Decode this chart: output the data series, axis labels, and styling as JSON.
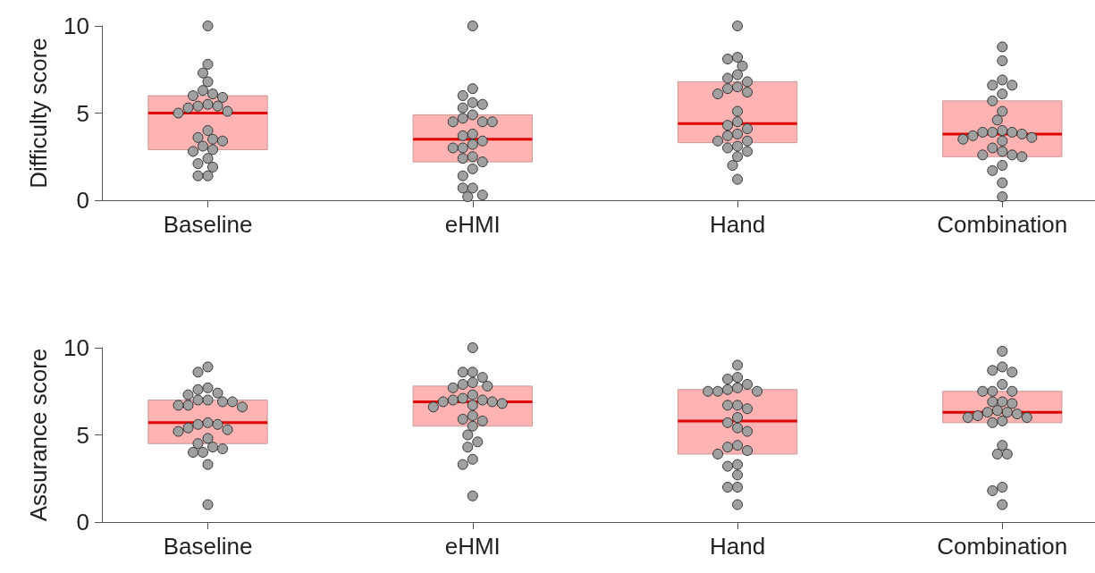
{
  "chart_data": [
    {
      "type": "box",
      "ylabel": "Difficulty score",
      "categories": [
        "Baseline",
        "eHMI",
        "Hand",
        "Combination"
      ],
      "ylim": [
        0,
        10
      ],
      "yticks": [
        0,
        5,
        10
      ],
      "grid": false,
      "marker": "circle",
      "series": [
        {
          "color": "#ffb3b3",
          "boxes": [
            {
              "q1": 2.9,
              "median": 5.0,
              "q3": 6.0
            },
            {
              "q1": 2.2,
              "median": 3.5,
              "q3": 4.9
            },
            {
              "q1": 3.3,
              "median": 4.4,
              "q3": 6.8
            },
            {
              "q1": 2.5,
              "median": 3.8,
              "q3": 5.7
            }
          ]
        },
        {
          "type": "scatter",
          "color": "#a0a0a0",
          "x": [
            "Baseline",
            "Baseline",
            "Baseline",
            "Baseline",
            "Baseline",
            "Baseline",
            "Baseline",
            "Baseline",
            "Baseline",
            "Baseline",
            "Baseline",
            "Baseline",
            "Baseline",
            "Baseline",
            "Baseline",
            "Baseline",
            "Baseline",
            "Baseline",
            "Baseline",
            "Baseline",
            "Baseline",
            "Baseline",
            "Baseline",
            "Baseline",
            "Baseline",
            "Baseline",
            "eHMI",
            "eHMI",
            "eHMI",
            "eHMI",
            "eHMI",
            "eHMI",
            "eHMI",
            "eHMI",
            "eHMI",
            "eHMI",
            "eHMI",
            "eHMI",
            "eHMI",
            "eHMI",
            "eHMI",
            "eHMI",
            "eHMI",
            "eHMI",
            "eHMI",
            "eHMI",
            "eHMI",
            "eHMI",
            "eHMI",
            "eHMI",
            "eHMI",
            "eHMI",
            "Hand",
            "Hand",
            "Hand",
            "Hand",
            "Hand",
            "Hand",
            "Hand",
            "Hand",
            "Hand",
            "Hand",
            "Hand",
            "Hand",
            "Hand",
            "Hand",
            "Hand",
            "Hand",
            "Hand",
            "Hand",
            "Hand",
            "Hand",
            "Hand",
            "Hand",
            "Hand",
            "Hand",
            "Hand",
            "Combination",
            "Combination",
            "Combination",
            "Combination",
            "Combination",
            "Combination",
            "Combination",
            "Combination",
            "Combination",
            "Combination",
            "Combination",
            "Combination",
            "Combination",
            "Combination",
            "Combination",
            "Combination",
            "Combination",
            "Combination",
            "Combination",
            "Combination",
            "Combination",
            "Combination",
            "Combination",
            "Combination",
            "Combination",
            "Combination",
            "Combination"
          ],
          "values": [
            10.0,
            7.8,
            7.3,
            6.8,
            6.3,
            6.1,
            6.0,
            5.9,
            5.5,
            5.4,
            5.4,
            5.3,
            5.1,
            5.0,
            4.0,
            3.6,
            3.5,
            3.4,
            3.1,
            2.9,
            2.8,
            2.4,
            2.1,
            1.9,
            1.4,
            1.4,
            10.0,
            6.4,
            6.0,
            5.6,
            5.5,
            5.3,
            4.9,
            4.7,
            4.5,
            4.5,
            4.5,
            3.8,
            3.7,
            3.4,
            3.2,
            3.0,
            3.0,
            2.5,
            2.4,
            2.2,
            1.8,
            1.4,
            0.7,
            0.7,
            0.3,
            0.2,
            10.0,
            8.2,
            8.1,
            7.7,
            7.2,
            7.0,
            6.8,
            6.5,
            6.4,
            6.2,
            6.1,
            5.1,
            4.5,
            4.3,
            4.1,
            3.8,
            3.7,
            3.4,
            3.4,
            3.1,
            3.0,
            2.8,
            2.5,
            2.0,
            1.2,
            8.8,
            8.0,
            6.9,
            6.6,
            6.6,
            6.1,
            5.7,
            5.1,
            4.6,
            4.0,
            3.9,
            3.9,
            3.9,
            3.8,
            3.7,
            3.6,
            3.5,
            3.4,
            3.0,
            2.8,
            2.6,
            2.6,
            2.5,
            2.0,
            1.7,
            1.0,
            0.2
          ]
        }
      ]
    },
    {
      "type": "box",
      "ylabel": "Assurance score",
      "categories": [
        "Baseline",
        "eHMI",
        "Hand",
        "Combination"
      ],
      "ylim": [
        0,
        10
      ],
      "yticks": [
        0,
        5,
        10
      ],
      "grid": false,
      "marker": "circle",
      "series": [
        {
          "color": "#ffb3b3",
          "boxes": [
            {
              "q1": 4.5,
              "median": 5.7,
              "q3": 7.0
            },
            {
              "q1": 5.5,
              "median": 6.9,
              "q3": 7.8
            },
            {
              "q1": 3.9,
              "median": 5.8,
              "q3": 7.6
            },
            {
              "q1": 5.7,
              "median": 6.3,
              "q3": 7.5
            }
          ]
        },
        {
          "type": "scatter",
          "color": "#a0a0a0",
          "x": [
            "Baseline",
            "Baseline",
            "Baseline",
            "Baseline",
            "Baseline",
            "Baseline",
            "Baseline",
            "Baseline",
            "Baseline",
            "Baseline",
            "Baseline",
            "Baseline",
            "Baseline",
            "Baseline",
            "Baseline",
            "Baseline",
            "Baseline",
            "Baseline",
            "Baseline",
            "Baseline",
            "Baseline",
            "Baseline",
            "Baseline",
            "Baseline",
            "Baseline",
            "Baseline",
            "Baseline",
            "eHMI",
            "eHMI",
            "eHMI",
            "eHMI",
            "eHMI",
            "eHMI",
            "eHMI",
            "eHMI",
            "eHMI",
            "eHMI",
            "eHMI",
            "eHMI",
            "eHMI",
            "eHMI",
            "eHMI",
            "eHMI",
            "eHMI",
            "eHMI",
            "eHMI",
            "eHMI",
            "eHMI",
            "eHMI",
            "eHMI",
            "eHMI",
            "eHMI",
            "eHMI",
            "eHMI",
            "Hand",
            "Hand",
            "Hand",
            "Hand",
            "Hand",
            "Hand",
            "Hand",
            "Hand",
            "Hand",
            "Hand",
            "Hand",
            "Hand",
            "Hand",
            "Hand",
            "Hand",
            "Hand",
            "Hand",
            "Hand",
            "Hand",
            "Hand",
            "Hand",
            "Hand",
            "Hand",
            "Hand",
            "Hand",
            "Hand",
            "Combination",
            "Combination",
            "Combination",
            "Combination",
            "Combination",
            "Combination",
            "Combination",
            "Combination",
            "Combination",
            "Combination",
            "Combination",
            "Combination",
            "Combination",
            "Combination",
            "Combination",
            "Combination",
            "Combination",
            "Combination",
            "Combination",
            "Combination",
            "Combination",
            "Combination",
            "Combination",
            "Combination",
            "Combination",
            "Combination"
          ],
          "values": [
            8.9,
            8.6,
            7.7,
            7.6,
            7.4,
            7.3,
            7.0,
            7.0,
            6.9,
            6.9,
            6.7,
            6.7,
            6.6,
            5.7,
            5.6,
            5.6,
            5.4,
            5.3,
            5.2,
            4.8,
            4.5,
            4.3,
            4.2,
            4.0,
            4.0,
            3.3,
            1.0,
            10.0,
            8.6,
            8.6,
            8.3,
            8.0,
            7.9,
            7.8,
            7.7,
            7.3,
            7.1,
            7.0,
            7.0,
            6.9,
            6.9,
            6.8,
            6.7,
            6.6,
            6.1,
            5.9,
            5.8,
            5.5,
            5.0,
            4.6,
            4.3,
            3.6,
            3.3,
            1.5,
            9.0,
            8.3,
            8.2,
            7.9,
            7.7,
            7.6,
            7.5,
            7.5,
            7.5,
            6.7,
            6.7,
            6.5,
            6.0,
            5.7,
            5.4,
            5.2,
            4.4,
            4.3,
            4.1,
            3.9,
            3.3,
            3.2,
            2.7,
            2.0,
            2.0,
            1.0,
            9.8,
            8.9,
            8.7,
            8.6,
            7.9,
            7.5,
            7.5,
            7.5,
            6.9,
            6.9,
            6.8,
            6.4,
            6.3,
            6.3,
            6.2,
            6.1,
            6.0,
            6.0,
            5.8,
            5.7,
            4.4,
            3.9,
            3.9,
            2.0,
            1.8,
            1.0
          ]
        }
      ]
    }
  ]
}
